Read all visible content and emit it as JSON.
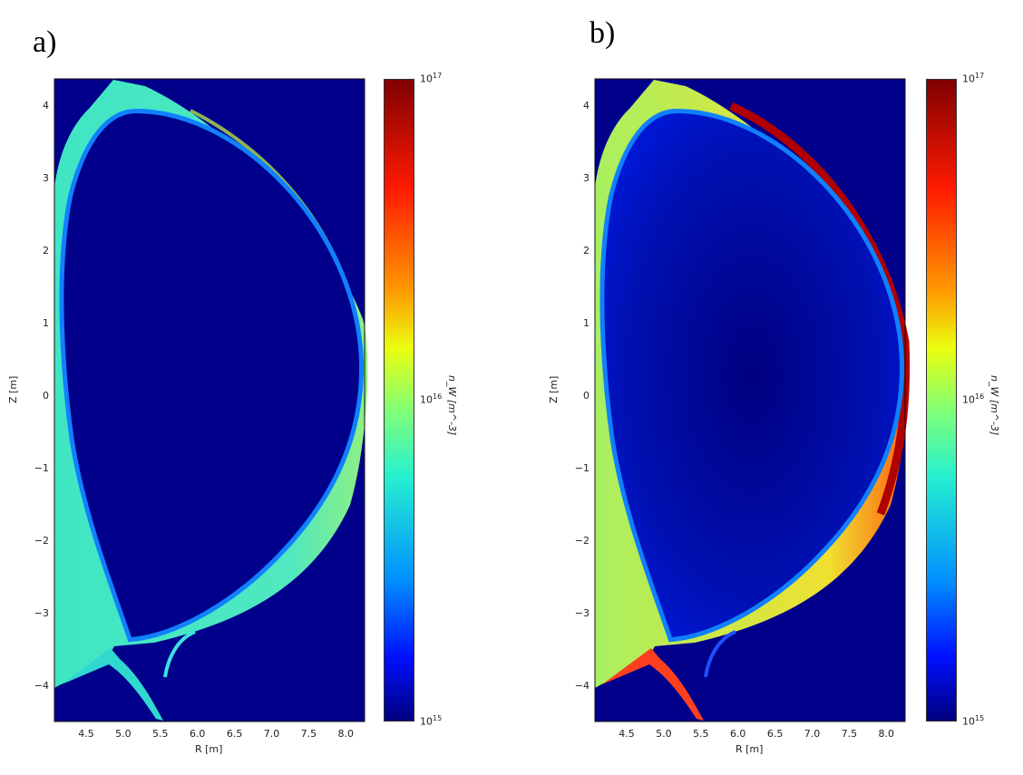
{
  "chart_data": [
    {
      "type": "heatmap",
      "panel_label": "a)",
      "xlabel": "R [m]",
      "ylabel": "Z [m]",
      "xlim": [
        4.07,
        8.3
      ],
      "ylim": [
        -4.5,
        4.37
      ],
      "xticks": [
        "4.5",
        "5.0",
        "5.5",
        "6.0",
        "6.5",
        "7.0",
        "7.5",
        "8.0"
      ],
      "yticks": [
        "4",
        "3",
        "2",
        "1",
        "0",
        "−1",
        "−2",
        "−3",
        "−4"
      ],
      "colorbar": {
        "label": "n_W [m^-3]",
        "scale": "log",
        "range": [
          1000000000000000.0,
          1e+17
        ],
        "ticks": [
          {
            "base": "10",
            "exp": "17"
          },
          {
            "base": "10",
            "exp": "16"
          },
          {
            "base": "10",
            "exp": "15"
          }
        ]
      },
      "colors": {
        "sol": "#3fe6c4",
        "core": "#00008b",
        "edge": "#c8ff40"
      }
    },
    {
      "type": "heatmap",
      "panel_label": "b)",
      "xlabel": "R [m]",
      "ylabel": "Z [m]",
      "xlim": [
        4.07,
        8.3
      ],
      "ylim": [
        -4.5,
        4.37
      ],
      "xticks": [
        "4.5",
        "5.0",
        "5.5",
        "6.0",
        "6.5",
        "7.0",
        "7.5",
        "8.0"
      ],
      "yticks": [
        "4",
        "3",
        "2",
        "1",
        "0",
        "−1",
        "−2",
        "−3",
        "−4"
      ],
      "colorbar": {
        "label": "n_W [m^-3]",
        "scale": "log",
        "range": [
          1000000000000000.0,
          1e+17
        ],
        "ticks": [
          {
            "base": "10",
            "exp": "17"
          },
          {
            "base": "10",
            "exp": "16"
          },
          {
            "base": "10",
            "exp": "15"
          }
        ]
      },
      "colors": {
        "sol": "#a8f060",
        "core": "#0018d8",
        "edge": "#b00000"
      }
    }
  ]
}
